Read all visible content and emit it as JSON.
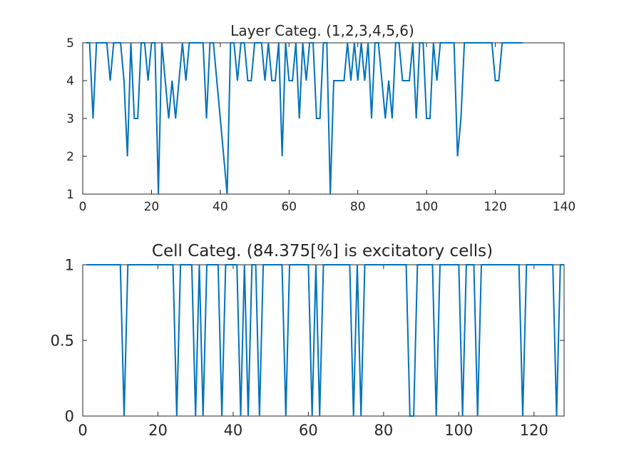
{
  "chart_data": [
    {
      "type": "line",
      "title": "Layer Categ. (1,2,3,4,5,6)",
      "xlabel": "",
      "ylabel": "",
      "xlim": [
        0,
        140
      ],
      "ylim": [
        1,
        5
      ],
      "xticks": [
        0,
        20,
        40,
        60,
        80,
        100,
        120,
        140
      ],
      "yticks": [
        1,
        2,
        3,
        4,
        5
      ],
      "grid": false,
      "line_color": "#0072BD",
      "x": [
        1,
        2,
        3,
        4,
        5,
        6,
        7,
        8,
        9,
        10,
        11,
        12,
        13,
        14,
        15,
        16,
        17,
        18,
        19,
        20,
        21,
        22,
        23,
        24,
        25,
        26,
        27,
        28,
        29,
        30,
        31,
        32,
        33,
        34,
        35,
        36,
        37,
        38,
        39,
        40,
        41,
        42,
        43,
        44,
        45,
        46,
        47,
        48,
        49,
        50,
        51,
        52,
        53,
        54,
        55,
        56,
        57,
        58,
        59,
        60,
        61,
        62,
        63,
        64,
        65,
        66,
        67,
        68,
        69,
        70,
        71,
        72,
        73,
        74,
        75,
        76,
        77,
        78,
        79,
        80,
        81,
        82,
        83,
        84,
        85,
        86,
        87,
        88,
        89,
        90,
        91,
        92,
        93,
        94,
        95,
        96,
        97,
        98,
        99,
        100,
        101,
        102,
        103,
        104,
        105,
        106,
        107,
        108,
        109,
        110,
        111,
        112,
        113,
        114,
        115,
        116,
        117,
        118,
        119,
        120,
        121,
        122,
        123,
        124,
        125,
        126,
        127,
        128
      ],
      "values": [
        5,
        5,
        3,
        5,
        5,
        5,
        5,
        4,
        5,
        5,
        5,
        4,
        2,
        5,
        3,
        3,
        5,
        5,
        4,
        5,
        5,
        1,
        5,
        4,
        3,
        4,
        3,
        4,
        5,
        4,
        5,
        5,
        5,
        5,
        5,
        3,
        5,
        5,
        4,
        3,
        2,
        1,
        5,
        5,
        4,
        5,
        5,
        4,
        4,
        5,
        5,
        5,
        4,
        5,
        4,
        4,
        5,
        2,
        5,
        4,
        4,
        5,
        3,
        5,
        4,
        5,
        5,
        3,
        3,
        5,
        5,
        1,
        4,
        4,
        4,
        4,
        5,
        4,
        5,
        4,
        5,
        4,
        5,
        3,
        5,
        5,
        4,
        3,
        4,
        3,
        5,
        5,
        4,
        4,
        4,
        5,
        3,
        5,
        5,
        3,
        3,
        5,
        4,
        5,
        5,
        5,
        5,
        5,
        2,
        3,
        5,
        5,
        5,
        5,
        5,
        5,
        5,
        5,
        5,
        4,
        4,
        5,
        5,
        5,
        5,
        5,
        5,
        5
      ]
    },
    {
      "type": "line",
      "title": "Cell Categ. (84.375[%] is excitatory cells)",
      "xlabel": "",
      "ylabel": "",
      "xlim": [
        0,
        128
      ],
      "ylim": [
        0,
        1
      ],
      "xticks": [
        0,
        20,
        40,
        60,
        80,
        100,
        120
      ],
      "yticks": [
        0,
        0.5,
        1
      ],
      "yticklabels": [
        "0",
        "0.5",
        "1"
      ],
      "grid": false,
      "line_color": "#0072BD",
      "x": [
        1,
        2,
        3,
        4,
        5,
        6,
        7,
        8,
        9,
        10,
        11,
        12,
        13,
        14,
        15,
        16,
        17,
        18,
        19,
        20,
        21,
        22,
        23,
        24,
        25,
        26,
        27,
        28,
        29,
        30,
        31,
        32,
        33,
        34,
        35,
        36,
        37,
        38,
        39,
        40,
        41,
        42,
        43,
        44,
        45,
        46,
        47,
        48,
        49,
        50,
        51,
        52,
        53,
        54,
        55,
        56,
        57,
        58,
        59,
        60,
        61,
        62,
        63,
        64,
        65,
        66,
        67,
        68,
        69,
        70,
        71,
        72,
        73,
        74,
        75,
        76,
        77,
        78,
        79,
        80,
        81,
        82,
        83,
        84,
        85,
        86,
        87,
        88,
        89,
        90,
        91,
        92,
        93,
        94,
        95,
        96,
        97,
        98,
        99,
        100,
        101,
        102,
        103,
        104,
        105,
        106,
        107,
        108,
        109,
        110,
        111,
        112,
        113,
        114,
        115,
        116,
        117,
        118,
        119,
        120,
        121,
        122,
        123,
        124,
        125,
        126,
        127,
        128
      ],
      "values": [
        1,
        1,
        1,
        1,
        1,
        1,
        1,
        1,
        1,
        1,
        0,
        1,
        1,
        1,
        1,
        1,
        1,
        1,
        1,
        1,
        1,
        1,
        1,
        1,
        0,
        1,
        1,
        1,
        1,
        0,
        1,
        0,
        1,
        1,
        1,
        1,
        0,
        1,
        1,
        1,
        1,
        0,
        1,
        0,
        1,
        1,
        0,
        1,
        1,
        1,
        1,
        1,
        1,
        0,
        1,
        1,
        1,
        1,
        1,
        1,
        0,
        1,
        0,
        1,
        1,
        1,
        1,
        1,
        1,
        1,
        1,
        0,
        1,
        0,
        1,
        1,
        1,
        1,
        1,
        1,
        1,
        1,
        1,
        1,
        1,
        1,
        0,
        0,
        1,
        1,
        1,
        1,
        1,
        0,
        1,
        1,
        1,
        1,
        1,
        1,
        0,
        1,
        1,
        1,
        0,
        1,
        1,
        1,
        1,
        1,
        1,
        1,
        1,
        1,
        1,
        1,
        0,
        1,
        1,
        1,
        1,
        1,
        1,
        1,
        1,
        0,
        1,
        1
      ]
    }
  ]
}
